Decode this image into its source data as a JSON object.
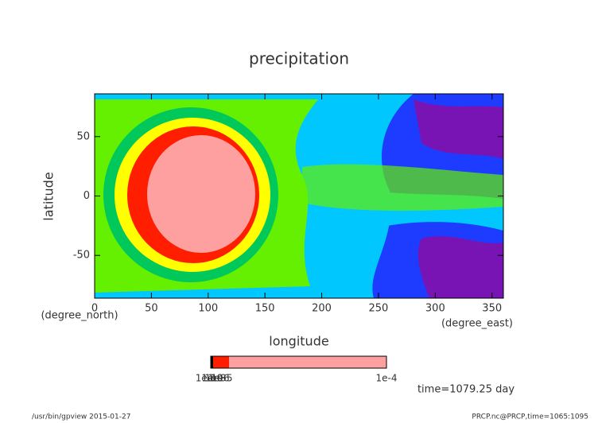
{
  "chart_data": {
    "type": "contour",
    "title": "precipitation",
    "x_label": "longitude",
    "y_label": "latitude",
    "x_units": "(degree_east)",
    "y_units": "(degree_north)",
    "xlim": [
      0,
      360
    ],
    "xticks": [
      0,
      50,
      100,
      150,
      200,
      250,
      300,
      350
    ],
    "ylim": [
      -86,
      86
    ],
    "yticks": [
      -50,
      0,
      50
    ],
    "colorbar_labels": [
      "1e-10",
      "1e-9",
      "1e-8",
      "1e-6",
      "1e-5",
      "1e-4"
    ],
    "time_label": "time=1079.25 day",
    "footer_left": "/usr/bin/gpview  2015-01-27",
    "footer_right": "PRCP.nc@PRCP,time=1065:1095"
  }
}
